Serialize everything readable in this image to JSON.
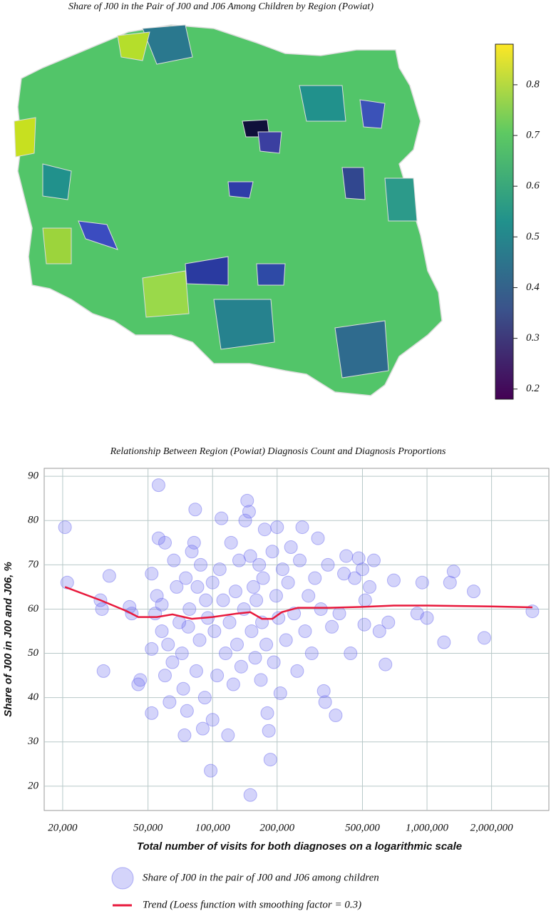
{
  "chart_data": [
    {
      "type": "choropleth",
      "title": "Share of J00 in the Pair of J00 and J06 Among Children by Region (Powiat)",
      "colormap": "viridis",
      "clim": [
        0.18,
        0.88
      ],
      "cticks": [
        0.2,
        0.3,
        0.4,
        0.5,
        0.6,
        0.7,
        0.8
      ]
    },
    {
      "type": "scatter",
      "title": "Relationship Between Region (Powiat) Diagnosis Count and Diagnosis Proportions",
      "xlabel": "Total number of visits for both diagnoses on a logarithmic scale",
      "ylabel": "Share of J00 in J00 and J06, %",
      "xscale": "log",
      "grid": true,
      "xlim": [
        16400,
        3700000
      ],
      "ylim": [
        14.5,
        91.8
      ],
      "xticks": [
        {
          "value": 20000,
          "label": "20,000"
        },
        {
          "value": 50000,
          "label": "50,000"
        },
        {
          "value": 100000,
          "label": "100,000"
        },
        {
          "value": 200000,
          "label": "200,000"
        },
        {
          "value": 500000,
          "label": "500,000"
        },
        {
          "value": 1000000,
          "label": "1,000,000"
        },
        {
          "value": 2000000,
          "label": "2,000,000"
        }
      ],
      "yticks": [
        20,
        30,
        40,
        50,
        60,
        70,
        80,
        90
      ],
      "series": [
        {
          "name": "Share of J00 in the pair of J00 and J06 among children",
          "kind": "scatter",
          "color": "#6f6ff0",
          "x": [
            20500,
            21000,
            30000,
            30500,
            31000,
            33000,
            41000,
            42000,
            45000,
            46000,
            52000,
            52000,
            52000,
            54000,
            55000,
            56000,
            56000,
            58000,
            58000,
            60000,
            60000,
            62000,
            63000,
            65000,
            66000,
            68000,
            70000,
            72000,
            73000,
            74000,
            75000,
            76000,
            77000,
            78000,
            80000,
            82000,
            83000,
            84000,
            85000,
            87000,
            88000,
            90000,
            92000,
            93000,
            95000,
            98000,
            100000,
            100000,
            102000,
            105000,
            108000,
            110000,
            112000,
            115000,
            118000,
            120000,
            122000,
            125000,
            128000,
            130000,
            133000,
            136000,
            140000,
            142000,
            145000,
            148000,
            150000,
            150000,
            152000,
            155000,
            158000,
            160000,
            165000,
            168000,
            170000,
            172000,
            175000,
            178000,
            180000,
            183000,
            186000,
            190000,
            193000,
            198000,
            200000,
            203000,
            207000,
            212000,
            220000,
            225000,
            232000,
            240000,
            248000,
            255000,
            262000,
            270000,
            280000,
            290000,
            300000,
            310000,
            320000,
            330000,
            335000,
            345000,
            360000,
            375000,
            390000,
            410000,
            420000,
            440000,
            460000,
            480000,
            500000,
            510000,
            515000,
            540000,
            565000,
            600000,
            640000,
            660000,
            700000,
            900000,
            950000,
            1000000,
            1200000,
            1280000,
            1330000,
            1650000,
            1850000,
            3100000
          ],
          "y": [
            78.5,
            66,
            62,
            60,
            46,
            67.5,
            60.5,
            59,
            43,
            44,
            36.5,
            51,
            68,
            59,
            63,
            88,
            76,
            61,
            55,
            75,
            45,
            52,
            39,
            48,
            71,
            65,
            57,
            50,
            42,
            31.5,
            67,
            37,
            56,
            60,
            73,
            75,
            82.5,
            46,
            65,
            53,
            70,
            33,
            40,
            62,
            58,
            23.5,
            35,
            66,
            55,
            45,
            69,
            80.5,
            62,
            50,
            31.5,
            57,
            75,
            43,
            64,
            52,
            71,
            47,
            60,
            80,
            84.5,
            82,
            72,
            18,
            55,
            65,
            49,
            62,
            70,
            44,
            57,
            67,
            78,
            52,
            36.5,
            32.5,
            26,
            73,
            48,
            63,
            78.5,
            58,
            41,
            69,
            53,
            66,
            74,
            59,
            46,
            71,
            78.5,
            55,
            63,
            50,
            67,
            76,
            60,
            41.5,
            39,
            70,
            56,
            36,
            59,
            68,
            72,
            50,
            67,
            71.5,
            69,
            56.5,
            62,
            65,
            71,
            55,
            47.5,
            57,
            66.5,
            59,
            66,
            58,
            52.5,
            66,
            68.5,
            64,
            53.5,
            59.5
          ]
        },
        {
          "name": "Trend (Loess function with smoothing factor = 0.3)",
          "kind": "line",
          "color": "#e8193c",
          "x": [
            20500,
            30000,
            40000,
            45000,
            55000,
            65000,
            80000,
            100000,
            130000,
            150000,
            170000,
            190000,
            210000,
            250000,
            350000,
            500000,
            700000,
            1000000,
            2000000,
            3100000
          ],
          "y": [
            65,
            62,
            59.5,
            58.2,
            58.2,
            58.8,
            57.8,
            58.2,
            59,
            59.3,
            57.8,
            57.8,
            59.3,
            60.3,
            60.3,
            60.5,
            60.8,
            60.8,
            60.6,
            60.4
          ]
        }
      ]
    }
  ]
}
